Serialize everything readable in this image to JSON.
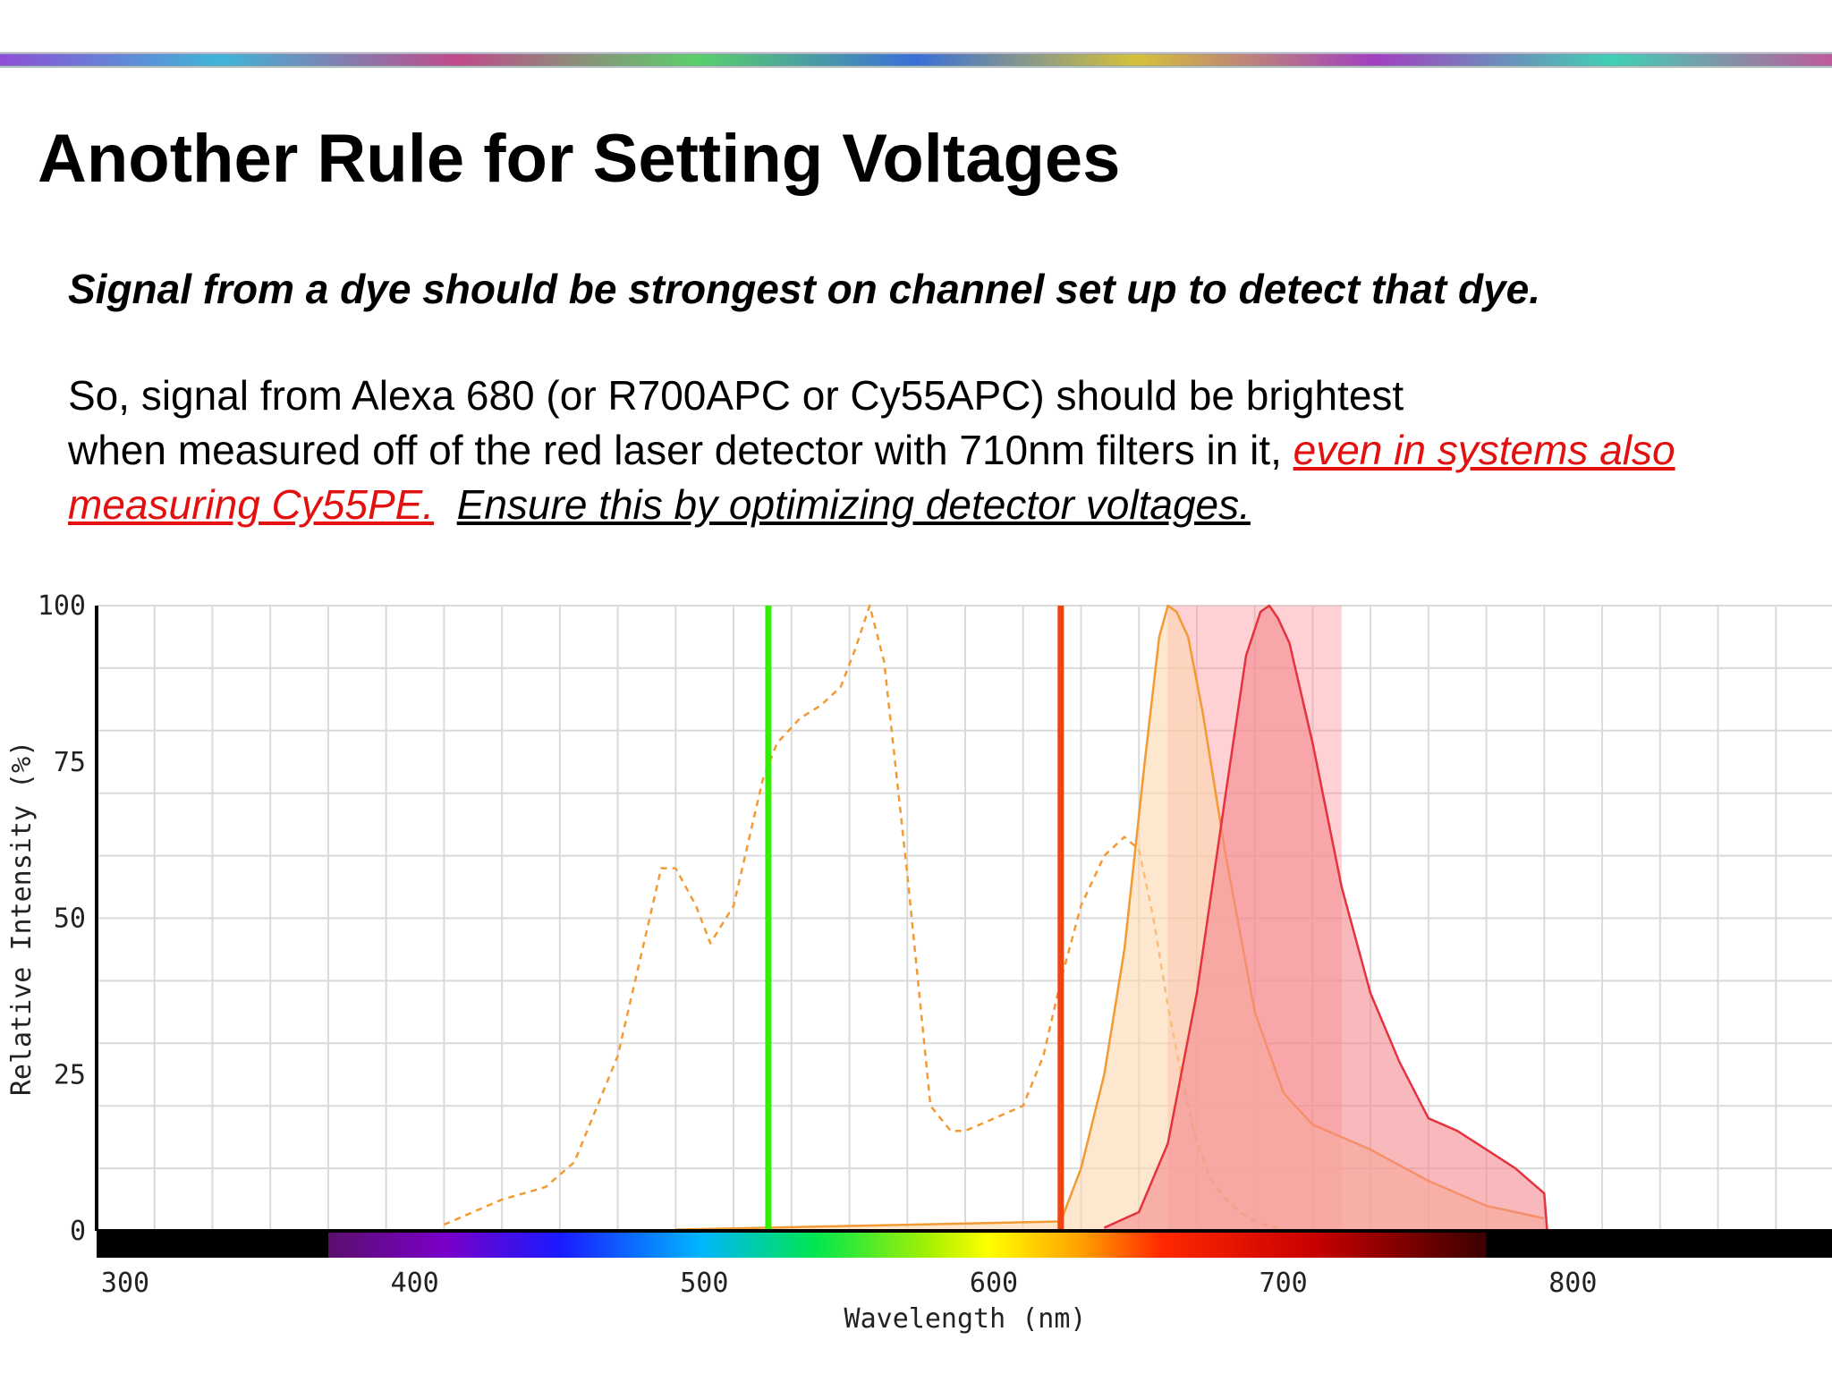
{
  "slide": {
    "title": "Another Rule for Setting Voltages",
    "lead": "Signal from a dye should be strongest on channel set up to detect that dye.",
    "para_line1": "So, signal from Alexa 680 (or R700APC or Cy55APC) should be brightest",
    "para_line2": "when measured off of the red laser detector with 710nm filters in it,",
    "para_red": "even in systems also measuring Cy55PE.",
    "para_underline": "Ensure this by optimizing detector voltages."
  },
  "colors": {
    "laser_green": "#33ee00",
    "laser_red": "#ee4411",
    "dye1": "#f29a33",
    "dye2": "#e4333f",
    "filter_band": "#ff8f99"
  },
  "chart_data": {
    "type": "line",
    "xlabel": "Wavelength (nm)",
    "ylabel": "Relative Intensity (%)",
    "xlim": [
      300,
      900
    ],
    "ylim": [
      0,
      100
    ],
    "xticks": [
      300,
      400,
      500,
      600,
      700,
      800,
      900
    ],
    "yticks": [
      0,
      25,
      50,
      75,
      100
    ],
    "grid": true,
    "lasers": [
      {
        "wavelength": 532,
        "color": "#33ee00"
      },
      {
        "wavelength": 633,
        "color": "#ee4411"
      }
    ],
    "filter_band": [
      670,
      730
    ],
    "spectrum_bar": [
      380,
      780
    ],
    "series": [
      {
        "kind": "excitation",
        "dashed": true,
        "color": "#f29a33",
        "x": [
          420,
          440,
          455,
          465,
          480,
          490,
          495,
          500,
          507,
          512,
          520,
          530,
          535,
          543,
          550,
          557,
          562,
          567,
          572,
          580,
          588,
          595,
          600,
          610,
          620,
          627,
          633,
          640,
          648,
          655,
          660,
          665,
          670,
          675,
          680,
          685,
          690,
          695,
          700,
          710
        ],
        "y": [
          1,
          5,
          7,
          11,
          28,
          48,
          58,
          58,
          52,
          46,
          52,
          72,
          78,
          82,
          84,
          87,
          93,
          100,
          91,
          57,
          20,
          16,
          16,
          18,
          20,
          28,
          40,
          52,
          60,
          63,
          61,
          50,
          36,
          24,
          14,
          8,
          5,
          3,
          1.5,
          0
        ]
      },
      {
        "kind": "emission",
        "dashed": false,
        "color": "#f29a33",
        "fill": "#fbd7ad",
        "x": [
          500,
          633,
          640,
          648,
          655,
          662,
          667,
          670,
          673,
          677,
          682,
          690,
          700,
          710,
          720,
          740,
          760,
          780,
          800
        ],
        "y": [
          0.2,
          1.5,
          10,
          25,
          45,
          75,
          95,
          100,
          99,
          95,
          83,
          60,
          35,
          22,
          17,
          13,
          8,
          4,
          2
        ]
      },
      {
        "kind": "emission",
        "dashed": false,
        "color": "#e4333f",
        "fill": "#f58a90",
        "x": [
          648,
          660,
          670,
          680,
          690,
          697,
          702,
          705,
          708,
          712,
          720,
          730,
          740,
          750,
          760,
          770,
          780,
          790,
          800,
          801
        ],
        "y": [
          0.5,
          3,
          14,
          38,
          70,
          92,
          99,
          100,
          98,
          94,
          78,
          55,
          38,
          27,
          18,
          16,
          13,
          10,
          6,
          0
        ]
      }
    ]
  }
}
